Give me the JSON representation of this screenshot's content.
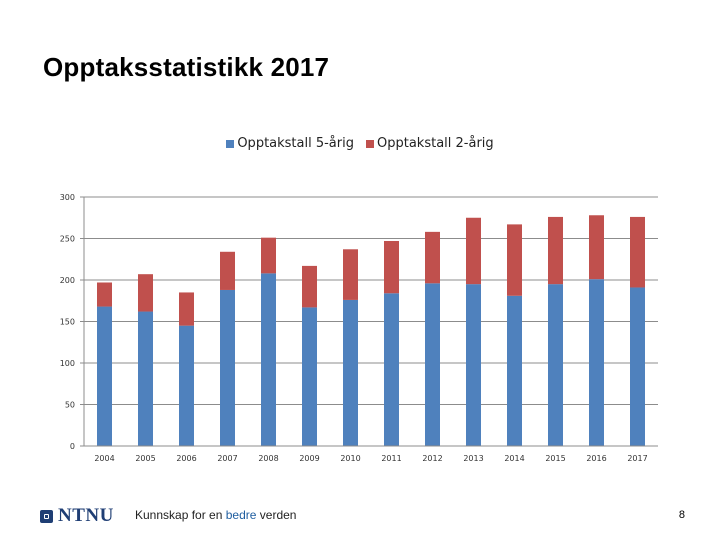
{
  "slide": {
    "title": "Opptaksstatistikk 2017",
    "page_number": "8"
  },
  "footer": {
    "logo_text": "NTNU",
    "tagline_pre": "Kunnskap for en ",
    "tagline_accent": "bedre",
    "tagline_post": " verden"
  },
  "colors": {
    "series_5": "#4f81bd",
    "series_2": "#c0504d",
    "brand": "#1f3e74"
  },
  "chart_data": {
    "type": "bar",
    "stacked": true,
    "categories": [
      "2004",
      "2005",
      "2006",
      "2007",
      "2008",
      "2009",
      "2010",
      "2011",
      "2012",
      "2013",
      "2014",
      "2015",
      "2016",
      "2017"
    ],
    "series": [
      {
        "name": "Opptakstall 5-årig",
        "values": [
          168,
          162,
          145,
          188,
          208,
          167,
          176,
          184,
          196,
          195,
          181,
          195,
          201,
          191
        ]
      },
      {
        "name": "Opptakstall 2-årig",
        "values": [
          29,
          45,
          40,
          46,
          43,
          50,
          61,
          63,
          62,
          80,
          86,
          81,
          77,
          85
        ]
      }
    ],
    "title": "",
    "xlabel": "",
    "ylabel": "",
    "ylim": [
      0,
      300
    ],
    "yticks": [
      "0",
      "50",
      "100",
      "150",
      "200",
      "250",
      "300"
    ],
    "grid": true,
    "legend_position": "top"
  }
}
